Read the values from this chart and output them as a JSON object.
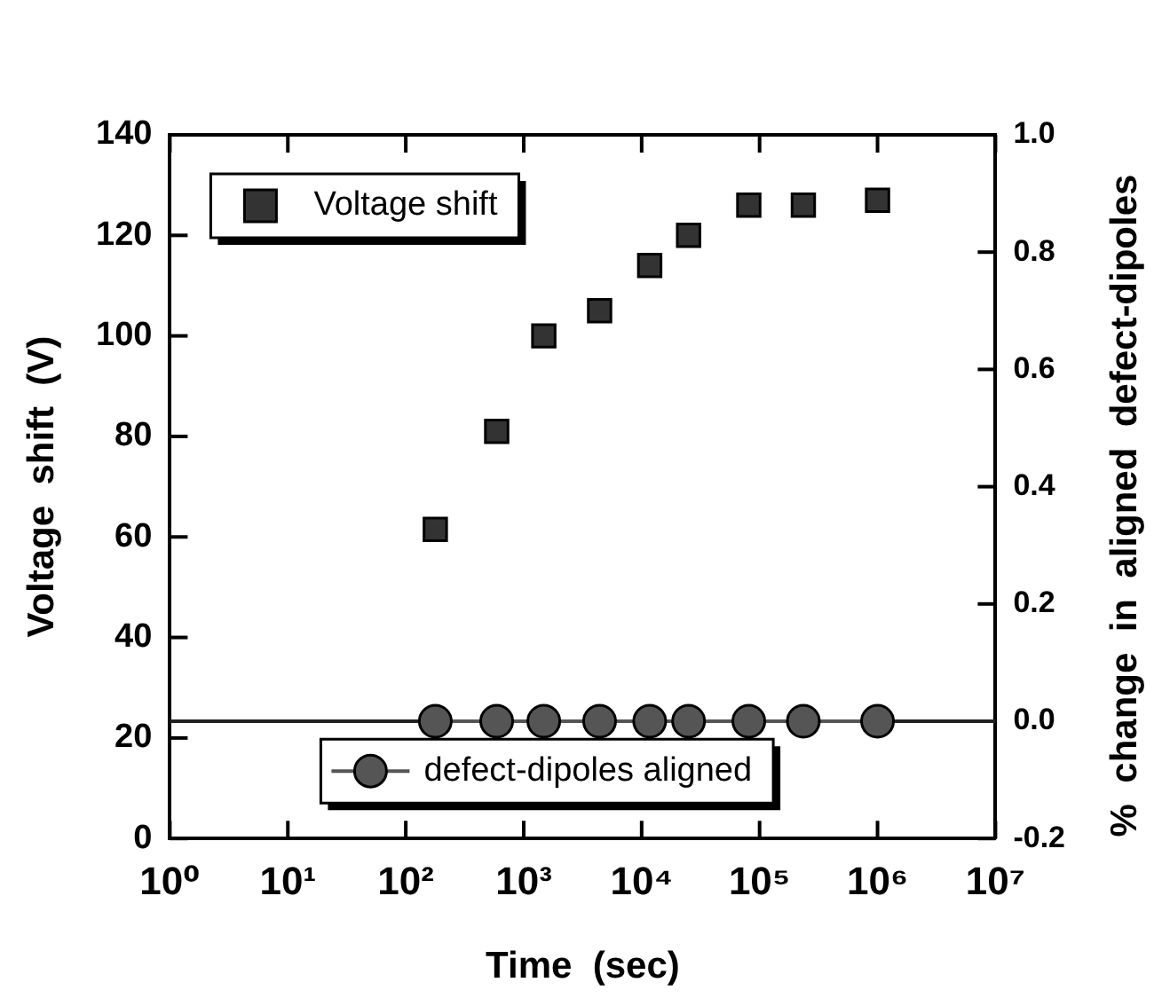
{
  "chart_data": {
    "type": "scatter",
    "xlabel": "Time  (sec)",
    "ylabel": "Voltage  shift  (V)",
    "y2label": "%  change  in  aligned  defect-dipoles",
    "log": "x",
    "grid": false,
    "legend": "left",
    "xlim": [
      1,
      10000000
    ],
    "xticks": [
      {
        "value": 1,
        "label": "10⁰"
      },
      {
        "value": 10,
        "label": "10¹"
      },
      {
        "value": 100,
        "label": "10²"
      },
      {
        "value": 1000,
        "label": "10³"
      },
      {
        "value": 10000,
        "label": "10⁴"
      },
      {
        "value": 100000,
        "label": "10⁵"
      },
      {
        "value": 1000000,
        "label": "10⁶"
      },
      {
        "value": 10000000,
        "label": "10⁷"
      }
    ],
    "ylim": [
      0,
      140
    ],
    "yticks": [
      0,
      20,
      40,
      60,
      80,
      100,
      120,
      140
    ],
    "y2lim": [
      -0.2,
      1.0
    ],
    "y2ticks": [
      {
        "value": -0.2,
        "label": "-0.2"
      },
      {
        "value": 0,
        "label": "0.0"
      },
      {
        "value": 0.2,
        "label": "0.2"
      },
      {
        "value": 0.4,
        "label": "0.4"
      },
      {
        "value": 0.6,
        "label": "0.6"
      },
      {
        "value": 0.8,
        "label": "0.8"
      },
      {
        "value": 1.0,
        "label": "1.0"
      }
    ],
    "ref_lines": [
      {
        "axis": "y2",
        "value": 0,
        "color": "#222222"
      }
    ],
    "series": [
      {
        "name": "Voltage shift",
        "marker": "square",
        "color": "#333333",
        "x": [
          178,
          590,
          1480,
          4400,
          11700,
          25000,
          81000,
          235000,
          1000000
        ],
        "values": [
          61.5,
          81,
          100,
          105,
          114,
          120,
          126,
          126,
          127
        ]
      },
      {
        "name": "defect-dipoles aligned",
        "type": "line",
        "marker": "circle",
        "axis": "y2",
        "color": "#555555",
        "x": [
          178,
          590,
          1480,
          4400,
          11700,
          25000,
          81000,
          235000,
          1000000
        ],
        "values": [
          0,
          0,
          0,
          0,
          0,
          0,
          0,
          0,
          0
        ]
      }
    ]
  }
}
